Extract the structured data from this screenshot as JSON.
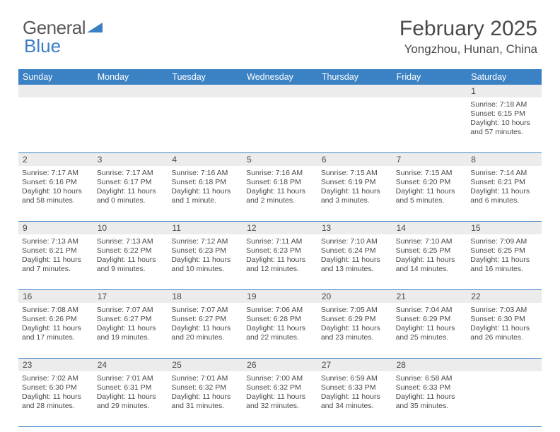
{
  "logo": {
    "text1": "General",
    "text2": "Blue"
  },
  "title": "February 2025",
  "location": "Yongzhou, Hunan, China",
  "colors": {
    "header_bg": "#3b82c4",
    "header_text": "#ffffff",
    "daynum_bg": "#ececec",
    "row_border": "#3b82c4",
    "body_text": "#4a4a4a",
    "logo_gray": "#5a5a5a",
    "logo_blue": "#3b7fc4"
  },
  "day_names": [
    "Sunday",
    "Monday",
    "Tuesday",
    "Wednesday",
    "Thursday",
    "Friday",
    "Saturday"
  ],
  "weeks": [
    {
      "nums": [
        "",
        "",
        "",
        "",
        "",
        "",
        "1"
      ],
      "cells": [
        {
          "sunrise": "",
          "sunset": "",
          "daylight1": "",
          "daylight2": ""
        },
        {
          "sunrise": "",
          "sunset": "",
          "daylight1": "",
          "daylight2": ""
        },
        {
          "sunrise": "",
          "sunset": "",
          "daylight1": "",
          "daylight2": ""
        },
        {
          "sunrise": "",
          "sunset": "",
          "daylight1": "",
          "daylight2": ""
        },
        {
          "sunrise": "",
          "sunset": "",
          "daylight1": "",
          "daylight2": ""
        },
        {
          "sunrise": "",
          "sunset": "",
          "daylight1": "",
          "daylight2": ""
        },
        {
          "sunrise": "Sunrise: 7:18 AM",
          "sunset": "Sunset: 6:15 PM",
          "daylight1": "Daylight: 10 hours",
          "daylight2": "and 57 minutes."
        }
      ]
    },
    {
      "nums": [
        "2",
        "3",
        "4",
        "5",
        "6",
        "7",
        "8"
      ],
      "cells": [
        {
          "sunrise": "Sunrise: 7:17 AM",
          "sunset": "Sunset: 6:16 PM",
          "daylight1": "Daylight: 10 hours",
          "daylight2": "and 58 minutes."
        },
        {
          "sunrise": "Sunrise: 7:17 AM",
          "sunset": "Sunset: 6:17 PM",
          "daylight1": "Daylight: 11 hours",
          "daylight2": "and 0 minutes."
        },
        {
          "sunrise": "Sunrise: 7:16 AM",
          "sunset": "Sunset: 6:18 PM",
          "daylight1": "Daylight: 11 hours",
          "daylight2": "and 1 minute."
        },
        {
          "sunrise": "Sunrise: 7:16 AM",
          "sunset": "Sunset: 6:18 PM",
          "daylight1": "Daylight: 11 hours",
          "daylight2": "and 2 minutes."
        },
        {
          "sunrise": "Sunrise: 7:15 AM",
          "sunset": "Sunset: 6:19 PM",
          "daylight1": "Daylight: 11 hours",
          "daylight2": "and 3 minutes."
        },
        {
          "sunrise": "Sunrise: 7:15 AM",
          "sunset": "Sunset: 6:20 PM",
          "daylight1": "Daylight: 11 hours",
          "daylight2": "and 5 minutes."
        },
        {
          "sunrise": "Sunrise: 7:14 AM",
          "sunset": "Sunset: 6:21 PM",
          "daylight1": "Daylight: 11 hours",
          "daylight2": "and 6 minutes."
        }
      ]
    },
    {
      "nums": [
        "9",
        "10",
        "11",
        "12",
        "13",
        "14",
        "15"
      ],
      "cells": [
        {
          "sunrise": "Sunrise: 7:13 AM",
          "sunset": "Sunset: 6:21 PM",
          "daylight1": "Daylight: 11 hours",
          "daylight2": "and 7 minutes."
        },
        {
          "sunrise": "Sunrise: 7:13 AM",
          "sunset": "Sunset: 6:22 PM",
          "daylight1": "Daylight: 11 hours",
          "daylight2": "and 9 minutes."
        },
        {
          "sunrise": "Sunrise: 7:12 AM",
          "sunset": "Sunset: 6:23 PM",
          "daylight1": "Daylight: 11 hours",
          "daylight2": "and 10 minutes."
        },
        {
          "sunrise": "Sunrise: 7:11 AM",
          "sunset": "Sunset: 6:23 PM",
          "daylight1": "Daylight: 11 hours",
          "daylight2": "and 12 minutes."
        },
        {
          "sunrise": "Sunrise: 7:10 AM",
          "sunset": "Sunset: 6:24 PM",
          "daylight1": "Daylight: 11 hours",
          "daylight2": "and 13 minutes."
        },
        {
          "sunrise": "Sunrise: 7:10 AM",
          "sunset": "Sunset: 6:25 PM",
          "daylight1": "Daylight: 11 hours",
          "daylight2": "and 14 minutes."
        },
        {
          "sunrise": "Sunrise: 7:09 AM",
          "sunset": "Sunset: 6:25 PM",
          "daylight1": "Daylight: 11 hours",
          "daylight2": "and 16 minutes."
        }
      ]
    },
    {
      "nums": [
        "16",
        "17",
        "18",
        "19",
        "20",
        "21",
        "22"
      ],
      "cells": [
        {
          "sunrise": "Sunrise: 7:08 AM",
          "sunset": "Sunset: 6:26 PM",
          "daylight1": "Daylight: 11 hours",
          "daylight2": "and 17 minutes."
        },
        {
          "sunrise": "Sunrise: 7:07 AM",
          "sunset": "Sunset: 6:27 PM",
          "daylight1": "Daylight: 11 hours",
          "daylight2": "and 19 minutes."
        },
        {
          "sunrise": "Sunrise: 7:07 AM",
          "sunset": "Sunset: 6:27 PM",
          "daylight1": "Daylight: 11 hours",
          "daylight2": "and 20 minutes."
        },
        {
          "sunrise": "Sunrise: 7:06 AM",
          "sunset": "Sunset: 6:28 PM",
          "daylight1": "Daylight: 11 hours",
          "daylight2": "and 22 minutes."
        },
        {
          "sunrise": "Sunrise: 7:05 AM",
          "sunset": "Sunset: 6:29 PM",
          "daylight1": "Daylight: 11 hours",
          "daylight2": "and 23 minutes."
        },
        {
          "sunrise": "Sunrise: 7:04 AM",
          "sunset": "Sunset: 6:29 PM",
          "daylight1": "Daylight: 11 hours",
          "daylight2": "and 25 minutes."
        },
        {
          "sunrise": "Sunrise: 7:03 AM",
          "sunset": "Sunset: 6:30 PM",
          "daylight1": "Daylight: 11 hours",
          "daylight2": "and 26 minutes."
        }
      ]
    },
    {
      "nums": [
        "23",
        "24",
        "25",
        "26",
        "27",
        "28",
        ""
      ],
      "cells": [
        {
          "sunrise": "Sunrise: 7:02 AM",
          "sunset": "Sunset: 6:30 PM",
          "daylight1": "Daylight: 11 hours",
          "daylight2": "and 28 minutes."
        },
        {
          "sunrise": "Sunrise: 7:01 AM",
          "sunset": "Sunset: 6:31 PM",
          "daylight1": "Daylight: 11 hours",
          "daylight2": "and 29 minutes."
        },
        {
          "sunrise": "Sunrise: 7:01 AM",
          "sunset": "Sunset: 6:32 PM",
          "daylight1": "Daylight: 11 hours",
          "daylight2": "and 31 minutes."
        },
        {
          "sunrise": "Sunrise: 7:00 AM",
          "sunset": "Sunset: 6:32 PM",
          "daylight1": "Daylight: 11 hours",
          "daylight2": "and 32 minutes."
        },
        {
          "sunrise": "Sunrise: 6:59 AM",
          "sunset": "Sunset: 6:33 PM",
          "daylight1": "Daylight: 11 hours",
          "daylight2": "and 34 minutes."
        },
        {
          "sunrise": "Sunrise: 6:58 AM",
          "sunset": "Sunset: 6:33 PM",
          "daylight1": "Daylight: 11 hours",
          "daylight2": "and 35 minutes."
        },
        {
          "sunrise": "",
          "sunset": "",
          "daylight1": "",
          "daylight2": ""
        }
      ]
    }
  ]
}
